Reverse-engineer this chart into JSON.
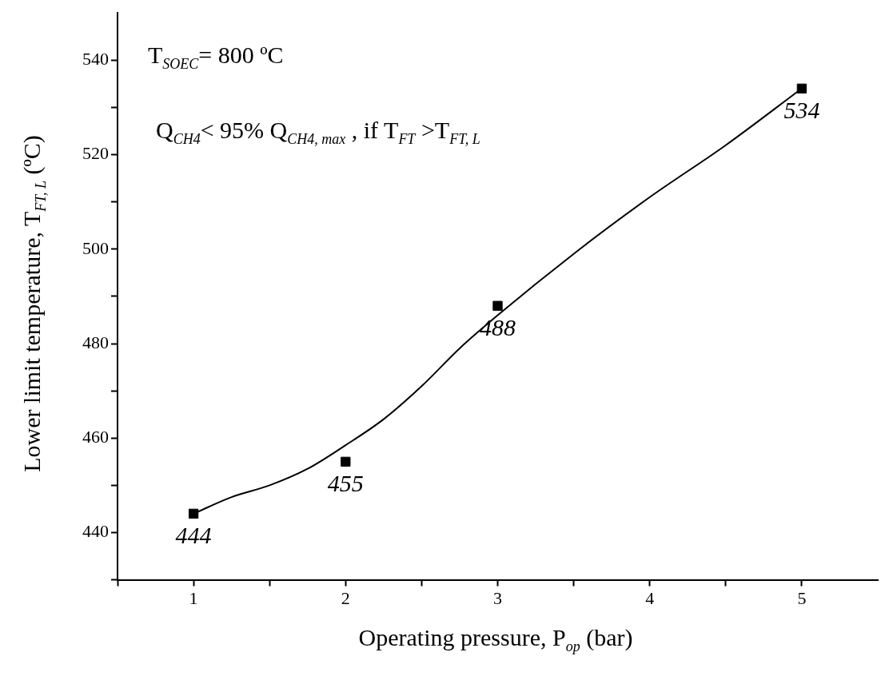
{
  "chart_data": {
    "type": "scatter",
    "xlabel": "Operating pressure, P$_{op}$ (bar)",
    "ylabel": "Lower limit temperature, T$_{FT, L}$ (ºC)",
    "annotations": [
      "T$_{SOEC}$= 800 ºC",
      "Q$_{CH4}$< 95% Q$_{CH4, max}$ , if T$_{FT}$ >T$_{FT, L}$"
    ],
    "xlim": [
      0.5,
      5.5
    ],
    "xticks": [
      {
        "value": 0.5,
        "label": null
      },
      1,
      {
        "value": 1.5,
        "label": null
      },
      2,
      {
        "value": 2.5,
        "label": null
      },
      3,
      {
        "value": 3.5,
        "label": null
      },
      4,
      {
        "value": 4.5,
        "label": null
      },
      5
    ],
    "ylim": [
      430,
      550
    ],
    "yticks": [
      {
        "value": 430,
        "label": null
      },
      440,
      {
        "value": 450,
        "label": null
      },
      460,
      {
        "value": 470,
        "label": null
      },
      480,
      {
        "value": 490,
        "label": null
      },
      500,
      {
        "value": 510,
        "label": null
      },
      520,
      {
        "value": 530,
        "label": null
      },
      540
    ],
    "series": [
      {
        "type": "line",
        "color": "#000000",
        "marker": "none",
        "x": [
          1,
          1.25,
          1.5,
          1.75,
          2,
          2.25,
          2.5,
          2.75,
          3,
          3.5,
          4,
          4.5,
          5
        ],
        "values": [
          444,
          447.5,
          450,
          453.5,
          458.5,
          464,
          471,
          479,
          486,
          499,
          511,
          522,
          534
        ]
      },
      {
        "color": "#000000",
        "marker": "square",
        "x": [
          1,
          2,
          3,
          5
        ],
        "values": [
          444,
          455,
          488,
          534
        ],
        "value_labels": [
          "444",
          "455",
          "488",
          "534"
        ]
      }
    ]
  }
}
